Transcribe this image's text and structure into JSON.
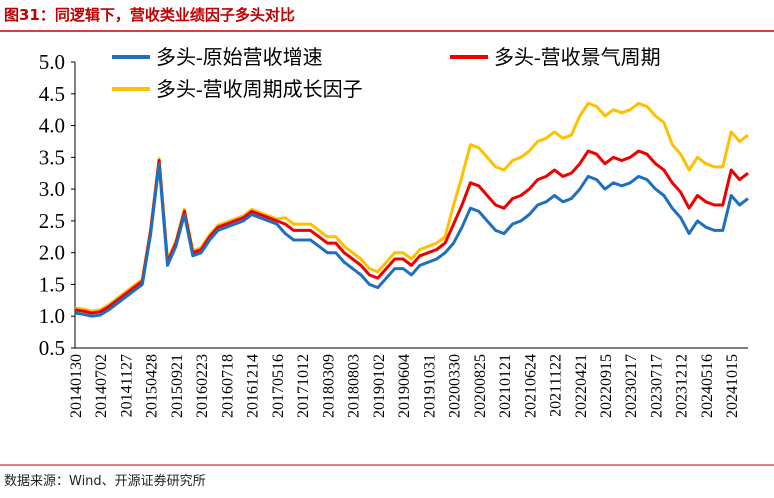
{
  "chart_data": {
    "type": "line",
    "title": "图31：同逻辑下，营收类业绩因子多头对比",
    "source": "数据来源：Wind、开源证券研究所",
    "categories": [
      "20140130",
      null,
      null,
      "20140702",
      null,
      null,
      "20141127",
      null,
      null,
      "20150428",
      null,
      null,
      "20150921",
      null,
      null,
      "20160223",
      null,
      null,
      "20160718",
      null,
      null,
      "20161214",
      null,
      null,
      "20170516",
      null,
      null,
      "20171012",
      null,
      null,
      "20180309",
      null,
      null,
      "20180803",
      null,
      null,
      "20190102",
      null,
      null,
      "20190604",
      null,
      null,
      "20191031",
      null,
      null,
      "20200330",
      null,
      null,
      "20200825",
      null,
      null,
      "20210121",
      null,
      null,
      "20210624",
      null,
      null,
      "20211122",
      null,
      null,
      "20220421",
      null,
      null,
      "20220915",
      null,
      null,
      "20230217",
      null,
      null,
      "20230717",
      null,
      null,
      "20231212",
      null,
      null,
      "20240516",
      null,
      null,
      "20241015",
      null,
      null
    ],
    "series": [
      {
        "name": "多头-原始营收增速",
        "color": "#1f6fbf",
        "values": [
          1.05,
          1.03,
          1.0,
          1.02,
          1.1,
          1.2,
          1.3,
          1.4,
          1.5,
          2.3,
          3.4,
          1.8,
          2.1,
          2.6,
          1.95,
          2.0,
          2.2,
          2.35,
          2.4,
          2.45,
          2.5,
          2.6,
          2.55,
          2.5,
          2.45,
          2.3,
          2.2,
          2.2,
          2.2,
          2.1,
          2.0,
          2.0,
          1.85,
          1.75,
          1.65,
          1.5,
          1.45,
          1.6,
          1.75,
          1.75,
          1.65,
          1.8,
          1.85,
          1.9,
          2.0,
          2.15,
          2.4,
          2.7,
          2.65,
          2.5,
          2.35,
          2.3,
          2.45,
          2.5,
          2.6,
          2.75,
          2.8,
          2.9,
          2.8,
          2.85,
          3.0,
          3.2,
          3.15,
          3.0,
          3.1,
          3.05,
          3.1,
          3.2,
          3.15,
          3.0,
          2.9,
          2.7,
          2.55,
          2.3,
          2.5,
          2.4,
          2.35,
          2.35,
          2.9,
          2.75,
          2.85
        ]
      },
      {
        "name": "多头-营收景气周期",
        "color": "#ee0000",
        "values": [
          1.1,
          1.08,
          1.05,
          1.07,
          1.15,
          1.25,
          1.35,
          1.45,
          1.55,
          2.35,
          3.45,
          1.85,
          2.15,
          2.65,
          2.0,
          2.05,
          2.25,
          2.4,
          2.45,
          2.5,
          2.55,
          2.65,
          2.6,
          2.55,
          2.5,
          2.45,
          2.35,
          2.35,
          2.35,
          2.25,
          2.15,
          2.15,
          2.0,
          1.9,
          1.8,
          1.65,
          1.6,
          1.75,
          1.9,
          1.9,
          1.8,
          1.95,
          2.0,
          2.05,
          2.15,
          2.45,
          2.75,
          3.1,
          3.05,
          2.9,
          2.75,
          2.7,
          2.85,
          2.9,
          3.0,
          3.15,
          3.2,
          3.3,
          3.2,
          3.25,
          3.4,
          3.6,
          3.55,
          3.4,
          3.5,
          3.45,
          3.5,
          3.6,
          3.55,
          3.4,
          3.3,
          3.1,
          2.95,
          2.7,
          2.9,
          2.8,
          2.75,
          2.75,
          3.3,
          3.15,
          3.25
        ]
      },
      {
        "name": "多头-营收周期成长因子",
        "color": "#ffc000",
        "values": [
          1.13,
          1.11,
          1.08,
          1.1,
          1.18,
          1.28,
          1.38,
          1.48,
          1.58,
          2.38,
          3.48,
          1.88,
          2.18,
          2.68,
          2.03,
          2.08,
          2.28,
          2.43,
          2.48,
          2.53,
          2.58,
          2.68,
          2.63,
          2.58,
          2.53,
          2.55,
          2.45,
          2.45,
          2.45,
          2.35,
          2.25,
          2.25,
          2.1,
          2.0,
          1.9,
          1.75,
          1.7,
          1.85,
          2.0,
          2.0,
          1.9,
          2.05,
          2.1,
          2.15,
          2.25,
          2.75,
          3.2,
          3.7,
          3.65,
          3.5,
          3.35,
          3.3,
          3.45,
          3.5,
          3.6,
          3.75,
          3.8,
          3.9,
          3.8,
          3.85,
          4.15,
          4.35,
          4.3,
          4.15,
          4.25,
          4.2,
          4.25,
          4.35,
          4.3,
          4.15,
          4.05,
          3.7,
          3.55,
          3.3,
          3.5,
          3.4,
          3.35,
          3.35,
          3.9,
          3.75,
          3.85
        ]
      }
    ],
    "ylim": [
      0.5,
      5.0
    ],
    "yticks": [
      0.5,
      {
        "value": 1.0,
        "label": "1.0"
      },
      1.5,
      {
        "value": 2.0,
        "label": "2.0"
      },
      2.5,
      {
        "value": 3.0,
        "label": "3.0"
      },
      3.5,
      {
        "value": 4.0,
        "label": "4.0"
      },
      4.5,
      {
        "value": 5.0,
        "label": "5.0"
      }
    ],
    "grid": false
  }
}
